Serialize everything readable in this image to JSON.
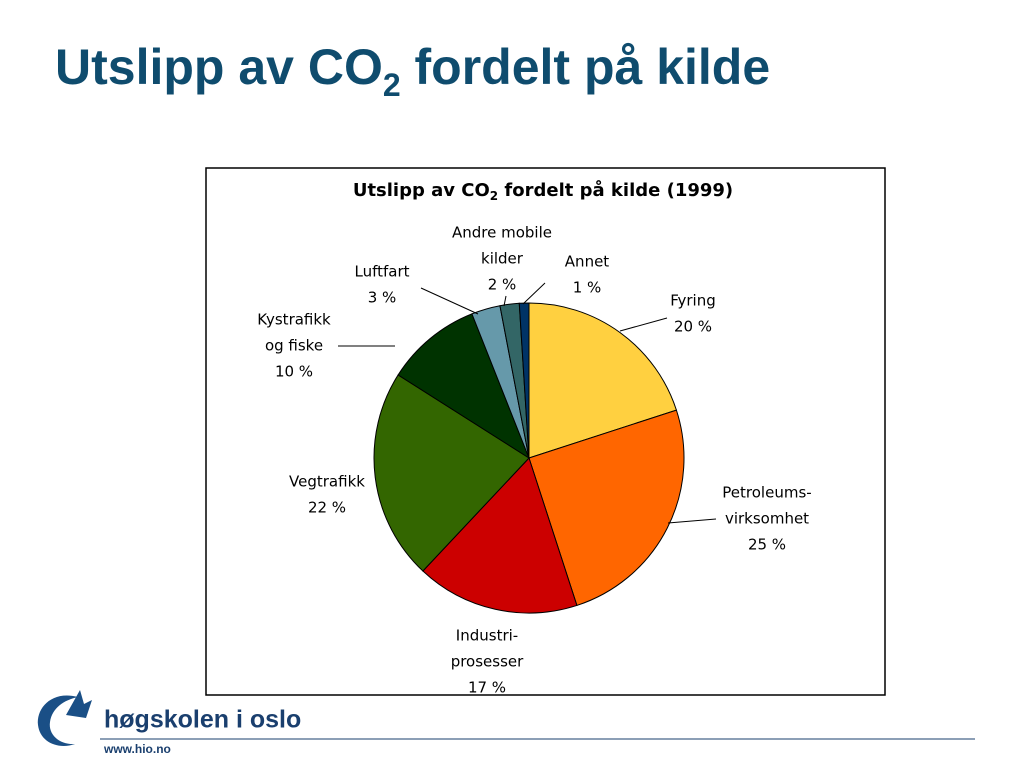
{
  "slide_title": {
    "text": "Utslipp av CO",
    "subscript": "2",
    "rest": " fordelt på kilde"
  },
  "chart_data": {
    "type": "pie",
    "title": "Utslipp av CO",
    "title_subscript": "2",
    "title_rest": " fordelt på kilde (1999)",
    "categories": [
      [
        "Fyring"
      ],
      [
        "Petroleums-",
        "virksomhet"
      ],
      [
        "Industri-",
        "prosesser"
      ],
      [
        "Vegtrafikk"
      ],
      [
        "Kystrafikk",
        "og fiske"
      ],
      [
        "Luftfart"
      ],
      [
        "Andre mobile",
        "kilder"
      ],
      [
        "Annet"
      ]
    ],
    "values": [
      20,
      25,
      17,
      22,
      10,
      3,
      2,
      1
    ],
    "value_labels": [
      "20 %",
      "25 %",
      "17 %",
      "22 %",
      "10 %",
      "3 %",
      "2 %",
      "1 %"
    ],
    "colors": [
      "#ffd040",
      "#ff6600",
      "#cc0000",
      "#336600",
      "#003300",
      "#6699aa",
      "#336666",
      "#003366"
    ]
  },
  "footer": {
    "logo": "høgskolen i oslo",
    "url": "www.hio.no"
  }
}
